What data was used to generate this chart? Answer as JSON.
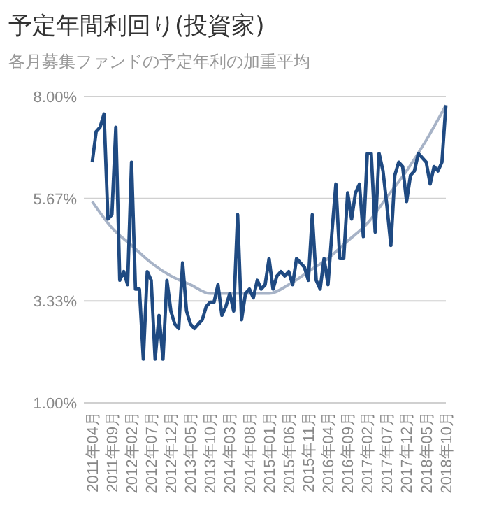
{
  "chart_data": {
    "type": "line",
    "title": "予定年間利回り(投資家)",
    "subtitle": "各月募集ファンドの予定年利の加重平均",
    "categories": [
      "2011年04月",
      null,
      null,
      null,
      null,
      "2011年09月",
      null,
      null,
      null,
      null,
      "2012年02月",
      null,
      null,
      null,
      null,
      "2012年07月",
      null,
      null,
      null,
      null,
      "2012年12月",
      null,
      null,
      null,
      null,
      "2013年05月",
      null,
      null,
      null,
      null,
      "2013年10月",
      null,
      null,
      null,
      null,
      "2014年03月",
      null,
      null,
      null,
      null,
      "2014年08月",
      null,
      null,
      null,
      null,
      "2015年01月",
      null,
      null,
      null,
      null,
      "2015年06月",
      null,
      null,
      null,
      null,
      "2015年11月",
      null,
      null,
      null,
      null,
      "2016年04月",
      null,
      null,
      null,
      null,
      "2016年09月",
      null,
      null,
      null,
      null,
      "2017年02月",
      null,
      null,
      null,
      null,
      "2017年07月",
      null,
      null,
      null,
      null,
      "2017年12月",
      null,
      null,
      null,
      null,
      "2018年05月",
      null,
      null,
      null,
      null,
      "2018年10月"
    ],
    "series": [
      {
        "type": "line",
        "color": "#a7b3c7",
        "x": [
          "2011年04月",
          "2011年09月",
          "2012年02月",
          "2012年07月",
          "2012年12月",
          "2013年05月",
          "2013年10月",
          "2014年03月",
          "2014年08月",
          "2015年01月",
          "2015年06月",
          "2015年11月",
          "2016年04月",
          "2016年09月",
          "2017年02月",
          "2017年07月",
          "2017年12月",
          "2018年05月",
          "2018年10月"
        ],
        "values": [
          5.6,
          5.0,
          4.6,
          4.2,
          3.9,
          3.7,
          3.5,
          3.5,
          3.5,
          3.5,
          3.7,
          4.0,
          4.3,
          4.7,
          5.1,
          5.7,
          6.3,
          7.0,
          7.8
        ]
      },
      {
        "color": "#1f4a82",
        "values": [
          6.5,
          7.2,
          7.3,
          7.6,
          5.2,
          5.3,
          7.3,
          3.8,
          4.0,
          3.7,
          6.5,
          3.6,
          3.6,
          2.0,
          4.0,
          3.8,
          2.0,
          3.0,
          2.0,
          3.8,
          3.1,
          2.8,
          2.7,
          4.2,
          3.1,
          2.8,
          2.7,
          2.8,
          2.9,
          3.2,
          3.3,
          3.3,
          3.7,
          3.0,
          3.2,
          3.5,
          3.1,
          5.3,
          2.9,
          3.5,
          3.6,
          3.4,
          3.8,
          3.6,
          3.7,
          4.3,
          3.6,
          3.9,
          4.0,
          3.9,
          4.0,
          3.7,
          4.3,
          4.2,
          4.1,
          3.8,
          5.3,
          3.8,
          3.6,
          4.3,
          3.7,
          4.9,
          6.0,
          4.3,
          4.3,
          5.8,
          5.2,
          5.8,
          6.0,
          4.8,
          6.7,
          6.7,
          4.9,
          6.7,
          6.3,
          5.5,
          4.6,
          6.2,
          6.5,
          6.4,
          5.6,
          6.2,
          6.3,
          6.7,
          6.6,
          6.5,
          6.0,
          6.4,
          6.3,
          6.5,
          7.8
        ]
      }
    ],
    "ylim": [
      1,
      8
    ],
    "yticks": [
      {
        "value": 1,
        "label": "1.00%"
      },
      {
        "value": 3.33,
        "label": "3.33%"
      },
      {
        "value": 5.67,
        "label": "5.67%"
      },
      {
        "value": 8,
        "label": "8.00%"
      }
    ],
    "grid": "y",
    "line_style": "solid"
  }
}
